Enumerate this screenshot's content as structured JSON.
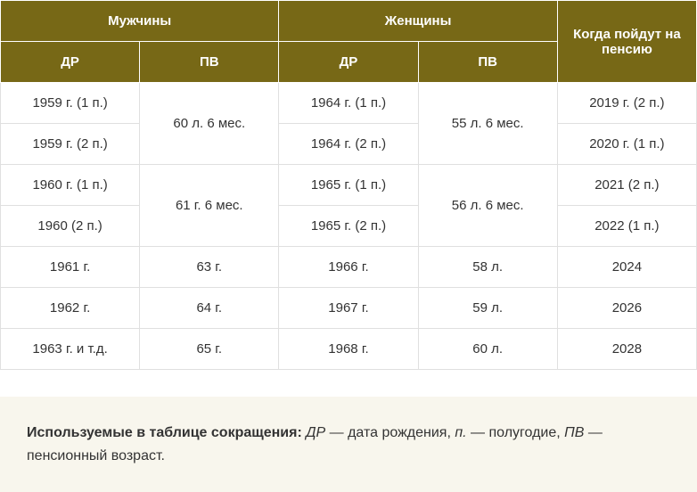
{
  "table": {
    "headers": {
      "men": "Мужчины",
      "women": "Женщины",
      "when_pension": "Когда пойдут на пенсию",
      "dr": "ДР",
      "pv": "ПВ"
    },
    "rows": [
      {
        "men_dr": "1959 г. (1 п.)",
        "men_pv": "60 л. 6 мес.",
        "women_dr": "1964 г. (1 п.)",
        "women_pv": "55 л. 6 мес.",
        "pension": "2019 г. (2 п.)"
      },
      {
        "men_dr": "1959 г. (2 п.)",
        "women_dr": "1964 г. (2 п.)",
        "pension": "2020 г. (1 п.)"
      },
      {
        "men_dr": "1960 г. (1 п.)",
        "men_pv": "61 г. 6 мес.",
        "women_dr": "1965 г. (1 п.)",
        "women_pv": "56 л. 6 мес.",
        "pension": "2021 (2 п.)"
      },
      {
        "men_dr": "1960 (2 п.)",
        "women_dr": "1965 г. (2 п.)",
        "pension": "2022 (1 п.)"
      },
      {
        "men_dr": "1961 г.",
        "men_pv": "63 г.",
        "women_dr": "1966 г.",
        "women_pv": "58 л.",
        "pension": "2024"
      },
      {
        "men_dr": "1962 г.",
        "men_pv": "64 г.",
        "women_dr": "1967 г.",
        "women_pv": "59 л.",
        "pension": "2026"
      },
      {
        "men_dr": "1963 г. и т.д.",
        "men_pv": "65 г.",
        "women_dr": "1968 г.",
        "women_pv": "60 л.",
        "pension": "2028"
      }
    ]
  },
  "footnote": {
    "label": "Используемые в таблице сокращения:",
    "dr_abbr": "ДР",
    "dr_text": " — дата рождения, ",
    "p_abbr": "п.",
    "p_text": " — полугодие, ",
    "pv_abbr": "ПВ",
    "pv_text": " — пенсионный возраст."
  }
}
